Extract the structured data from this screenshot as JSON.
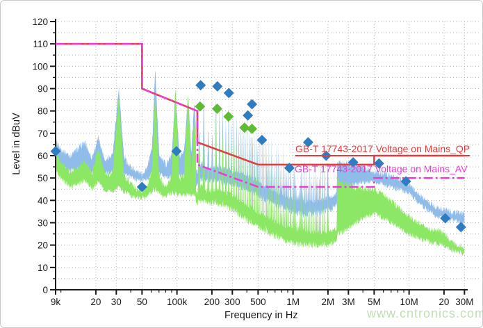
{
  "watermark": "www.cntronics.com",
  "chart_data": {
    "type": "area",
    "title": "",
    "xlabel": "Frequency in Hz",
    "ylabel": "Level in dBuV",
    "x_scale": "log",
    "x_range_hz": [
      9000,
      30000000
    ],
    "ylim": [
      0,
      120
    ],
    "grid": "dotted",
    "y_ticks": [
      0,
      10,
      20,
      30,
      40,
      50,
      60,
      70,
      80,
      90,
      100,
      110,
      120
    ],
    "y_minor_step": 5,
    "x_ticks": [
      {
        "f": 9000,
        "label": "9k"
      },
      {
        "f": 20000,
        "label": "20"
      },
      {
        "f": 30000,
        "label": "30"
      },
      {
        "f": 50000,
        "label": "50"
      },
      {
        "f": 100000,
        "label": "100k"
      },
      {
        "f": 200000,
        "label": "200"
      },
      {
        "f": 300000,
        "label": "300"
      },
      {
        "f": 500000,
        "label": "500"
      },
      {
        "f": 1000000,
        "label": "1M"
      },
      {
        "f": 2000000,
        "label": "2M"
      },
      {
        "f": 3000000,
        "label": "3M"
      },
      {
        "f": 5000000,
        "label": "5M"
      },
      {
        "f": 10000000,
        "label": "10M"
      },
      {
        "f": 20000000,
        "label": "20"
      },
      {
        "f": 30000000,
        "label": "30M"
      }
    ],
    "x_minor_ticks": [
      10000,
      40000,
      60000,
      70000,
      80000,
      90000,
      400000,
      600000,
      700000,
      800000,
      900000,
      4000000,
      6000000,
      7000000,
      8000000,
      9000000
    ],
    "colors": {
      "qp_trace": "#8fbce9",
      "av_trace": "#8ce764",
      "qp_marker": "#2f7cc0",
      "av_marker": "#5fbb35",
      "qp_limit": "#e04040",
      "av_limit": "#ee3cce",
      "grid": "#b3b3b3",
      "axis": "#1a1a1a"
    },
    "limit_lines": [
      {
        "name": "GB-T 17743-2017 Voltage on Mains_QP",
        "style": "solid",
        "points": [
          [
            9000,
            110
          ],
          [
            50000,
            110
          ],
          [
            50000,
            90
          ],
          [
            150000,
            80
          ],
          [
            150000,
            66
          ],
          [
            500000,
            56
          ],
          [
            5000000,
            56
          ],
          [
            5000000,
            60
          ],
          [
            30000000,
            60
          ]
        ]
      },
      {
        "name": "GB-T 17743-2017 Voltage on Mains_AV",
        "style": "dash-dot",
        "points": [
          [
            9000,
            110
          ],
          [
            50000,
            110
          ],
          [
            50000,
            90
          ],
          [
            150000,
            80
          ],
          [
            150000,
            56
          ],
          [
            500000,
            46
          ],
          [
            5000000,
            46
          ],
          [
            5000000,
            50
          ],
          [
            30000000,
            50
          ]
        ]
      }
    ],
    "markers": {
      "qp_final": [
        [
          9000,
          62
        ],
        [
          50000,
          46
        ],
        [
          99000,
          62
        ],
        [
          160000,
          91.5
        ],
        [
          223000,
          91
        ],
        [
          280000,
          88
        ],
        [
          408000,
          78
        ],
        [
          443000,
          83
        ],
        [
          540000,
          67
        ],
        [
          930000,
          54.5
        ],
        [
          1350000,
          66
        ],
        [
          1930000,
          60
        ],
        [
          3300000,
          57
        ],
        [
          5500000,
          56.5
        ],
        [
          9400000,
          48.5
        ],
        [
          20500000,
          32
        ],
        [
          28000000,
          28
        ]
      ],
      "av_final": [
        [
          158000,
          82
        ],
        [
          222000,
          81
        ],
        [
          278000,
          77.5
        ],
        [
          382000,
          72.5
        ],
        [
          443000,
          72
        ]
      ]
    },
    "traces": {
      "qp_envelope": [
        [
          9000,
          67,
          58
        ],
        [
          10000,
          63,
          55
        ],
        [
          12000,
          60,
          53
        ],
        [
          14000,
          63,
          54
        ],
        [
          16000,
          66,
          55
        ],
        [
          18500,
          59,
          52
        ],
        [
          21000,
          68,
          55
        ],
        [
          24000,
          58,
          52
        ],
        [
          28000,
          61,
          53
        ],
        [
          31500,
          90,
          54
        ],
        [
          35000,
          59,
          52
        ],
        [
          40000,
          55,
          50
        ],
        [
          45000,
          53,
          49
        ],
        [
          50000,
          52,
          49
        ],
        [
          56000,
          55,
          50
        ],
        [
          61000,
          64,
          52
        ],
        [
          65000,
          99,
          53
        ],
        [
          70000,
          61,
          52
        ],
        [
          80000,
          56,
          50
        ],
        [
          90000,
          60,
          51
        ],
        [
          97000,
          90,
          52
        ],
        [
          105000,
          59,
          51
        ],
        [
          115000,
          61,
          51
        ],
        [
          125000,
          88,
          52
        ],
        [
          133000,
          61,
          51
        ],
        [
          141000,
          84,
          51
        ],
        [
          150000,
          64,
          51
        ],
        [
          158000,
          81,
          52
        ],
        [
          166000,
          99,
          53
        ],
        [
          178000,
          72,
          52
        ],
        [
          192000,
          76,
          52
        ],
        [
          205000,
          73,
          52
        ],
        [
          218000,
          92,
          52
        ],
        [
          235000,
          81,
          52
        ],
        [
          250000,
          86,
          51
        ],
        [
          265000,
          79,
          51
        ],
        [
          280000,
          88,
          51
        ],
        [
          300000,
          81,
          50
        ],
        [
          320000,
          85,
          50
        ],
        [
          340000,
          79,
          49
        ],
        [
          362000,
          83,
          49
        ],
        [
          385000,
          81,
          48
        ],
        [
          410000,
          79,
          47
        ],
        [
          440000,
          84,
          47
        ],
        [
          470000,
          79,
          46
        ],
        [
          500000,
          77,
          45
        ],
        [
          550000,
          75,
          44
        ],
        [
          600000,
          73,
          43
        ],
        [
          650000,
          72,
          42
        ],
        [
          700000,
          71,
          41
        ],
        [
          800000,
          69,
          40
        ],
        [
          900000,
          65,
          39
        ],
        [
          1000000,
          63,
          38
        ],
        [
          1200000,
          62,
          37
        ],
        [
          1500000,
          61,
          37
        ],
        [
          1800000,
          60,
          38
        ],
        [
          2200000,
          58,
          40
        ],
        [
          2700000,
          57,
          44
        ],
        [
          3300000,
          56,
          47
        ],
        [
          4000000,
          55,
          48
        ],
        [
          5000000,
          53,
          48
        ],
        [
          6000000,
          52,
          47
        ],
        [
          7000000,
          51,
          46
        ],
        [
          8000000,
          50,
          45
        ],
        [
          9000000,
          49,
          44
        ],
        [
          10000000,
          47,
          43
        ],
        [
          11000000,
          45,
          41
        ],
        [
          12000000,
          43,
          39
        ],
        [
          14000000,
          40,
          36
        ],
        [
          16000000,
          38,
          34
        ],
        [
          18000000,
          36.5,
          32.5
        ],
        [
          20000000,
          36,
          31.5
        ],
        [
          23000000,
          35,
          31
        ],
        [
          26000000,
          34.5,
          30.5
        ],
        [
          30000000,
          34,
          29.5
        ]
      ],
      "av_envelope": [
        [
          9000,
          62,
          54
        ],
        [
          10000,
          57,
          50
        ],
        [
          12000,
          53,
          46
        ],
        [
          14000,
          55,
          47
        ],
        [
          16000,
          58,
          49
        ],
        [
          18500,
          52,
          45
        ],
        [
          21000,
          64,
          48
        ],
        [
          24000,
          52,
          44
        ],
        [
          28000,
          52,
          44
        ],
        [
          31500,
          86,
          46
        ],
        [
          35000,
          51,
          44
        ],
        [
          40000,
          48,
          42
        ],
        [
          45000,
          45,
          41
        ],
        [
          50000,
          44,
          41
        ],
        [
          56000,
          47,
          42
        ],
        [
          61000,
          54,
          44
        ],
        [
          65000,
          89,
          45
        ],
        [
          70000,
          51,
          43
        ],
        [
          80000,
          46,
          42
        ],
        [
          90000,
          51,
          43
        ],
        [
          97000,
          90,
          43
        ],
        [
          105000,
          50,
          42
        ],
        [
          115000,
          51,
          42
        ],
        [
          125000,
          87,
          43
        ],
        [
          133000,
          51,
          42
        ],
        [
          141000,
          80,
          42
        ],
        [
          150000,
          53,
          42
        ],
        [
          158000,
          76,
          43
        ],
        [
          166000,
          86,
          43
        ],
        [
          178000,
          62,
          42
        ],
        [
          192000,
          66,
          42
        ],
        [
          205000,
          63,
          42
        ],
        [
          218000,
          82,
          42
        ],
        [
          235000,
          71,
          41
        ],
        [
          250000,
          76,
          41
        ],
        [
          265000,
          69,
          40
        ],
        [
          280000,
          79,
          40
        ],
        [
          300000,
          71,
          39
        ],
        [
          320000,
          75,
          38
        ],
        [
          340000,
          69,
          37
        ],
        [
          362000,
          73,
          36
        ],
        [
          385000,
          71,
          35
        ],
        [
          410000,
          69,
          34
        ],
        [
          440000,
          73,
          33
        ],
        [
          470000,
          68,
          32
        ],
        [
          500000,
          66,
          31
        ],
        [
          550000,
          64,
          30
        ],
        [
          600000,
          62,
          29
        ],
        [
          650000,
          61,
          28
        ],
        [
          700000,
          60,
          27
        ],
        [
          800000,
          58,
          26
        ],
        [
          900000,
          56,
          25
        ],
        [
          1000000,
          54,
          24
        ],
        [
          1200000,
          53,
          23
        ],
        [
          1500000,
          52,
          23
        ],
        [
          1800000,
          51,
          23
        ],
        [
          2200000,
          50,
          24
        ],
        [
          2700000,
          48,
          26
        ],
        [
          3300000,
          46,
          29
        ],
        [
          4000000,
          45.5,
          32
        ],
        [
          5000000,
          45,
          34
        ],
        [
          6000000,
          43,
          32
        ],
        [
          7000000,
          40,
          30
        ],
        [
          8000000,
          37,
          28
        ],
        [
          9000000,
          35,
          26
        ],
        [
          10000000,
          33,
          25
        ],
        [
          12000000,
          30,
          23
        ],
        [
          14000000,
          28,
          22
        ],
        [
          16000000,
          27,
          21
        ],
        [
          18000000,
          26.5,
          20.5
        ],
        [
          20000000,
          25,
          19.5
        ],
        [
          23000000,
          22,
          18
        ],
        [
          26000000,
          20.5,
          17
        ],
        [
          30000000,
          19,
          16
        ]
      ]
    }
  }
}
